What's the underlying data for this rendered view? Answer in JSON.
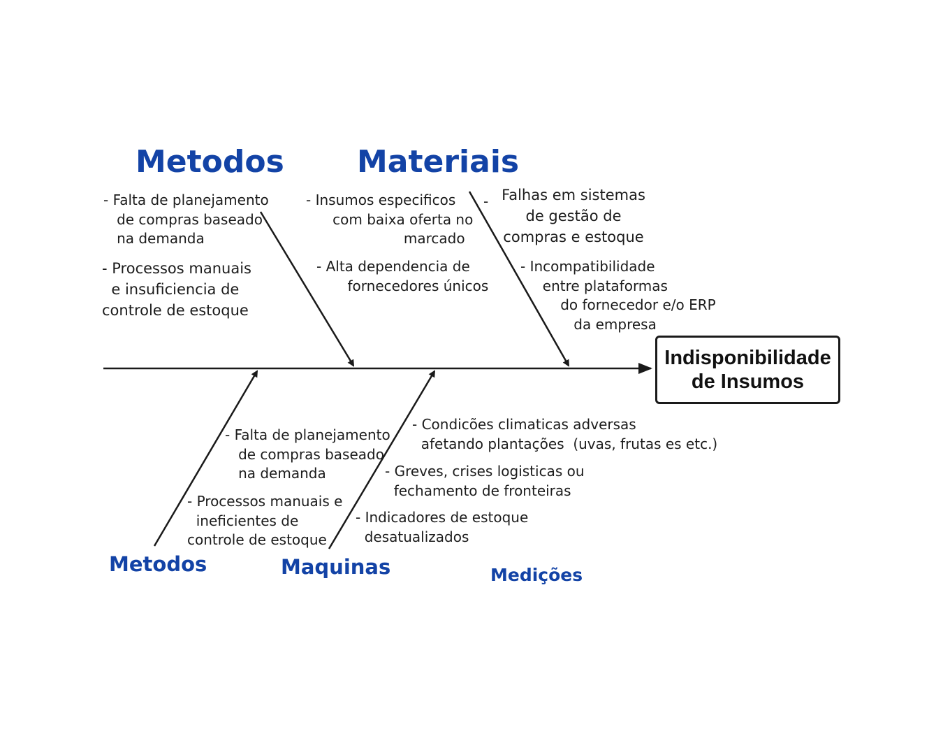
{
  "effect": "Indisponibilidade\nde Insumos",
  "categories": {
    "top_left": "Metodos",
    "top_right": "Materiais",
    "bottom_left": "Metodos",
    "bottom_mid": "Maquinas",
    "bottom_right": "Medições"
  },
  "causes": {
    "top_left_1": "- Falta de planejamento\n   de compras baseado\n   na demanda",
    "top_left_2": "- Processos manuais\n  e insuficiencia de\ncontrole de estoque",
    "top_mid_1": "- Insumos especificos\n      com baixa oferta no\n                      marcado",
    "top_mid_2": "- Alta dependencia de\n       fornecedores únicos",
    "top_right_dash": "-",
    "top_right_1": "Falhas em sistemas\nde gestão de\ncompras e estoque",
    "top_right_2": "- Incompatibilidade\n     entre plataformas\n         do fornecedor e/o ERP\n            da empresa",
    "bottom_left_1": "- Falta de planejamento\n   de compras baseado\n   na demanda",
    "bottom_left_2": "- Processos manuais e\n  ineficientes de\ncontrole de estoque",
    "bottom_mid_1": "- Condicões climaticas adversas\n  afetando plantações  (uvas, frutas es etc.)",
    "bottom_mid_2": "- Greves, crises logisticas ou\n  fechamento de fronteiras",
    "bottom_mid_3": "- Indicadores de estoque\n  desatualizados"
  }
}
